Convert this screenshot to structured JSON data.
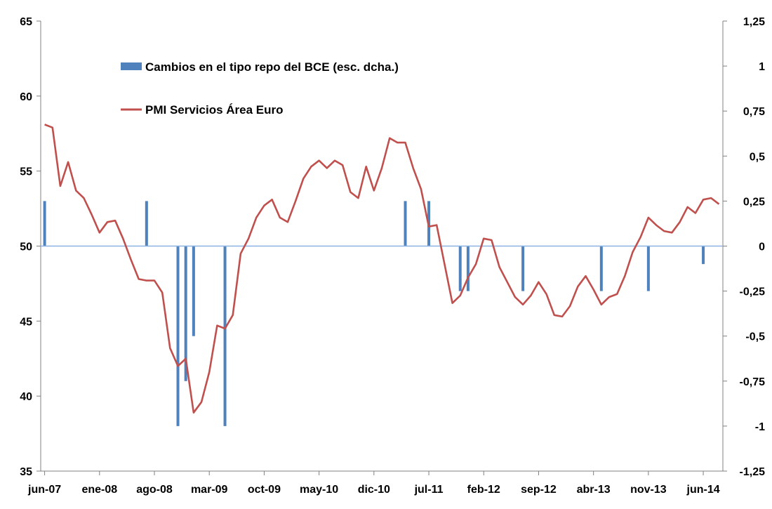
{
  "chart_data": {
    "type": "bar+line",
    "title": "",
    "legend": {
      "placement": "top-left",
      "entries": [
        {
          "label": "Cambios en el tipo repo del BCE (esc. dcha.)",
          "marker": "bar",
          "color": "#4f81bd"
        },
        {
          "label": "PMI Servicios Área Euro",
          "marker": "line",
          "color": "#c0504d"
        }
      ]
    },
    "left_axis": {
      "min": 35,
      "max": 65,
      "ticks": [
        "35",
        "40",
        "45",
        "50",
        "55",
        "60",
        "65"
      ]
    },
    "right_axis": {
      "min": -1.25,
      "max": 1.25,
      "ticks": [
        "-1,25",
        "-1",
        "-0,75",
        "-0,5",
        "-0,25",
        "0",
        "0,25",
        "0,5",
        "0,75",
        "1",
        "1,25"
      ]
    },
    "x_ticks": [
      {
        "label": "jun-07",
        "index": 0
      },
      {
        "label": "ene-08",
        "index": 7
      },
      {
        "label": "ago-08",
        "index": 14
      },
      {
        "label": "mar-09",
        "index": 21
      },
      {
        "label": "oct-09",
        "index": 28
      },
      {
        "label": "may-10",
        "index": 35
      },
      {
        "label": "dic-10",
        "index": 42
      },
      {
        "label": "jul-11",
        "index": 49
      },
      {
        "label": "feb-12",
        "index": 56
      },
      {
        "label": "sep-12",
        "index": 63
      },
      {
        "label": "abr-13",
        "index": 70
      },
      {
        "label": "nov-13",
        "index": 77
      },
      {
        "label": "jun-14",
        "index": 84
      }
    ],
    "colors": {
      "bar": "#4f81bd",
      "line": "#c0504d",
      "zero_line": "#8db3e2",
      "axis": "#808080"
    },
    "series": [
      {
        "name": "PMI Servicios Área Euro",
        "axis": "left",
        "kind": "line",
        "values": [
          58.1,
          57.9,
          54.0,
          55.6,
          53.7,
          53.2,
          52.1,
          50.9,
          51.6,
          51.7,
          50.5,
          49.1,
          47.8,
          47.7,
          47.7,
          46.9,
          43.2,
          42.0,
          42.5,
          38.9,
          39.6,
          41.6,
          44.7,
          44.5,
          45.4,
          49.5,
          50.5,
          51.9,
          52.7,
          53.1,
          51.9,
          51.6,
          53.0,
          54.5,
          55.3,
          55.7,
          55.2,
          55.7,
          55.4,
          53.6,
          53.2,
          55.3,
          53.7,
          55.2,
          57.2,
          56.9,
          56.9,
          55.2,
          53.8,
          51.3,
          51.4,
          48.8,
          46.2,
          46.7,
          47.9,
          48.8,
          50.5,
          50.4,
          48.6,
          47.6,
          46.6,
          46.1,
          46.7,
          47.6,
          46.8,
          45.4,
          45.3,
          46.0,
          47.3,
          48.0,
          47.1,
          46.1,
          46.6,
          46.8,
          48.0,
          49.6,
          50.6,
          51.9,
          51.4,
          51.0,
          50.9,
          51.6,
          52.6,
          52.2,
          53.1,
          53.2,
          52.8
        ],
        "last_index": 86
      },
      {
        "name": "Cambios en el tipo repo del BCE (esc. dcha.)",
        "axis": "right",
        "kind": "bar",
        "points": [
          {
            "index": 0,
            "value": 0.25
          },
          {
            "index": 13,
            "value": 0.25
          },
          {
            "index": 17,
            "value": -1.0
          },
          {
            "index": 18,
            "value": -0.75
          },
          {
            "index": 19,
            "value": -0.5
          },
          {
            "index": 23,
            "value": -1.0
          },
          {
            "index": 46,
            "value": 0.25
          },
          {
            "index": 49,
            "value": 0.25
          },
          {
            "index": 53,
            "value": -0.25
          },
          {
            "index": 54,
            "value": -0.25
          },
          {
            "index": 61,
            "value": -0.25
          },
          {
            "index": 71,
            "value": -0.25
          },
          {
            "index": 77,
            "value": -0.25
          },
          {
            "index": 84,
            "value": -0.1
          }
        ]
      }
    ]
  }
}
